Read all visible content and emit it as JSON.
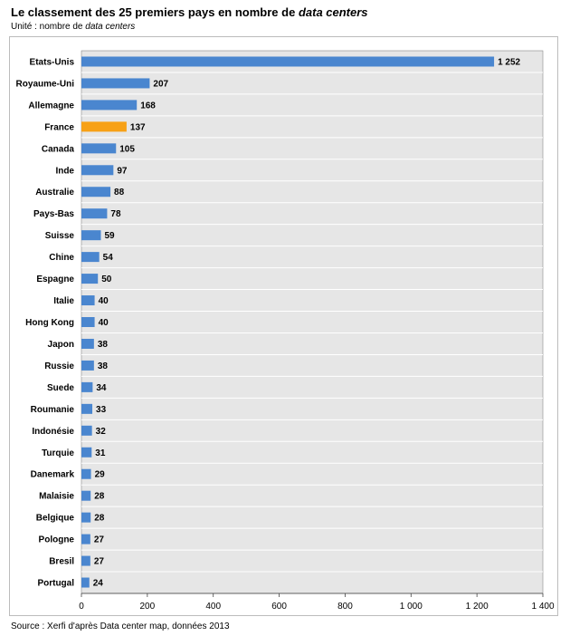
{
  "title_main": "Le classement des 25 premiers pays en nombre de ",
  "title_italic": "data centers",
  "subtitle_main": "Unité : nombre de ",
  "subtitle_italic": "data centers",
  "source": "Source : Xerfi d'après Data center map, données 2013",
  "colors": {
    "bar": "#4a86cf",
    "highlight": "#f7a117",
    "plot_bg": "#e6e6e6",
    "grid": "#ffffff"
  },
  "chart_data": {
    "type": "bar",
    "orientation": "horizontal",
    "title": "Le classement des 25 premiers pays en nombre de data centers",
    "subtitle": "Unité : nombre de data centers",
    "categories": [
      "Etats-Unis",
      "Royaume-Uni",
      "Allemagne",
      "France",
      "Canada",
      "Inde",
      "Australie",
      "Pays-Bas",
      "Suisse",
      "Chine",
      "Espagne",
      "Italie",
      "Hong Kong",
      "Japon",
      "Russie",
      "Suede",
      "Roumanie",
      "Indonésie",
      "Turquie",
      "Danemark",
      "Malaisie",
      "Belgique",
      "Pologne",
      "Bresil",
      "Portugal"
    ],
    "values": [
      1252,
      207,
      168,
      137,
      105,
      97,
      88,
      78,
      59,
      54,
      50,
      40,
      40,
      38,
      38,
      34,
      33,
      32,
      31,
      29,
      28,
      28,
      27,
      27,
      24
    ],
    "value_labels": [
      "1 252",
      "207",
      "168",
      "137",
      "105",
      "97",
      "88",
      "78",
      "59",
      "54",
      "50",
      "40",
      "40",
      "38",
      "38",
      "34",
      "33",
      "32",
      "31",
      "29",
      "28",
      "28",
      "27",
      "27",
      "24"
    ],
    "highlight": "France",
    "xlim": [
      0,
      1400
    ],
    "xticks": [
      0,
      200,
      400,
      600,
      800,
      1000,
      1200,
      1400
    ],
    "xtick_labels": [
      "0",
      "200",
      "400",
      "600",
      "800",
      "1 000",
      "1 200",
      "1 400"
    ],
    "grid": true,
    "legend": "none"
  }
}
